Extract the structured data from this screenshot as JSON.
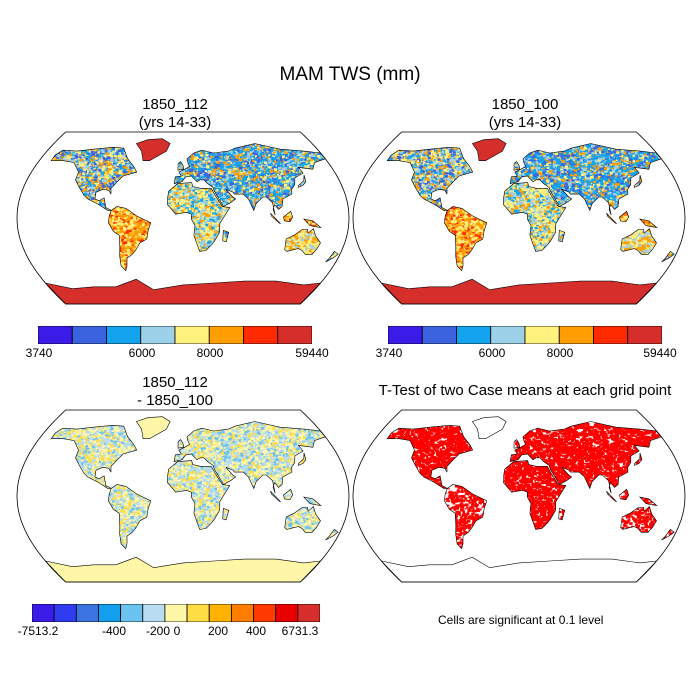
{
  "figure": {
    "title": "MAM TWS (mm)"
  },
  "panels": [
    {
      "id": "case1",
      "title_line1": "1850_112",
      "title_line2": "(yrs 14-33)",
      "colors": [
        "#3a1be8",
        "#3b63e0",
        "#13a3ef",
        "#9dd1ea",
        "#fff17e",
        "#ff9e00",
        "#ff2a00",
        "#d62e2b"
      ],
      "legend_labels": [
        "3740",
        "6000",
        "8000",
        "59440"
      ],
      "land_style": "absolute"
    },
    {
      "id": "case2",
      "title_line1": "1850_100",
      "title_line2": "(yrs 14-33)",
      "colors": [
        "#3a1be8",
        "#3b63e0",
        "#13a3ef",
        "#9dd1ea",
        "#fff17e",
        "#ff9e00",
        "#ff2a00",
        "#d62e2b"
      ],
      "legend_labels": [
        "3740",
        "6000",
        "8000",
        "59440"
      ],
      "land_style": "absolute"
    },
    {
      "id": "difference",
      "title_line1": "1850_112",
      "title_line2": "- 1850_100",
      "colors": [
        "#3a1be8",
        "#2f3cf0",
        "#3b73e0",
        "#149fee",
        "#6cc3f0",
        "#b9dcf0",
        "#fff6a8",
        "#ffde45",
        "#ffb300",
        "#ff7e00",
        "#ff3a00",
        "#e80000",
        "#d62e2b"
      ],
      "legend_labels": [
        "-7513.2",
        "-400",
        "-200",
        "0",
        "200",
        "400",
        "6731.3"
      ],
      "land_style": "difference"
    },
    {
      "id": "ttest",
      "title_line1": "T-Test of two Case means at each grid point",
      "title_line2": "",
      "significance_color": "#ff0000",
      "note": "Cells are significant at 0.1 level",
      "land_style": "ttest"
    }
  ]
}
